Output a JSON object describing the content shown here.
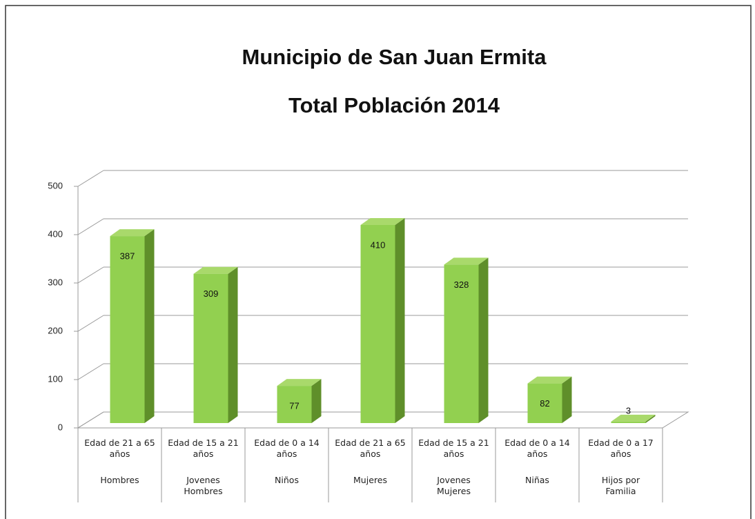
{
  "chart_data": {
    "type": "bar3d",
    "title": "Municipio de San Juan Ermita",
    "subtitle": "Total Población 2014",
    "categories": [
      "Edad de 21 a 65 años",
      "Edad de 15 a 21 años",
      "Edad de 0 a 14 años",
      "Edad de 21 a 65 años",
      "Edad de 15 a 21 años",
      "Edad de 0 a 14 años",
      "Edad de 0 a 17 años"
    ],
    "category_groups": [
      "Hombres",
      "Jovenes Hombres",
      "Niños",
      "Mujeres",
      "Jovenes Mujeres",
      "Niñas",
      "Hijos por Familia"
    ],
    "values": [
      387,
      309,
      77,
      410,
      328,
      82,
      3
    ],
    "color": "#92d050",
    "ylim": [
      0,
      500
    ],
    "yticks": [
      0,
      100,
      200,
      300,
      400,
      500
    ],
    "grid": true
  }
}
